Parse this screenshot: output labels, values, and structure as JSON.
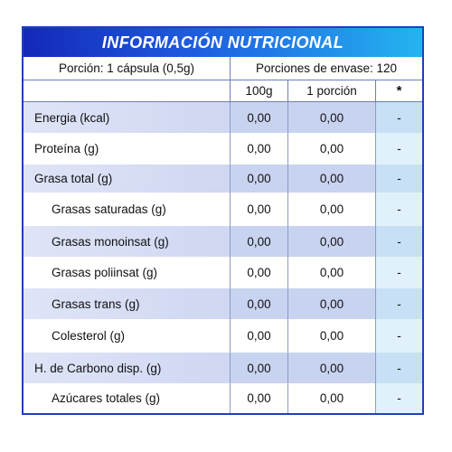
{
  "title": "INFORMACIÓN NUTRICIONAL",
  "portion": "Porción: 1 cápsula (0,5g)",
  "servings": "Porciones de envase: 120",
  "header": {
    "label": "",
    "col_100g": "100g",
    "col_portion": "1 porción",
    "col_star": "*"
  },
  "rows": [
    {
      "label": "Energia (kcal)",
      "v100": "0,00",
      "vportion": "0,00",
      "vstar": "-"
    },
    {
      "label": "Proteína (g)",
      "v100": "0,00",
      "vportion": "0,00",
      "vstar": "-"
    },
    {
      "label": "Grasa total (g)",
      "v100": "0,00",
      "vportion": "0,00",
      "vstar": "-"
    },
    {
      "label": "Grasas saturadas (g)",
      "v100": "0,00",
      "vportion": "0,00",
      "vstar": "-"
    },
    {
      "label": "Grasas monoinsat (g)",
      "v100": "0,00",
      "vportion": "0,00",
      "vstar": "-"
    },
    {
      "label": "Grasas poliinsat (g)",
      "v100": "0,00",
      "vportion": "0,00",
      "vstar": "-"
    },
    {
      "label": "Grasas trans (g)",
      "v100": "0,00",
      "vportion": "0,00",
      "vstar": "-"
    },
    {
      "label": "Colesterol (g)",
      "v100": "0,00",
      "vportion": "0,00",
      "vstar": "-"
    },
    {
      "label": "H. de Carbono disp. (g)",
      "v100": "0,00",
      "vportion": "0,00",
      "vstar": "-"
    },
    {
      "label": "Azúcares totales (g)",
      "v100": "0,00",
      "vportion": "0,00",
      "vstar": "-"
    }
  ]
}
